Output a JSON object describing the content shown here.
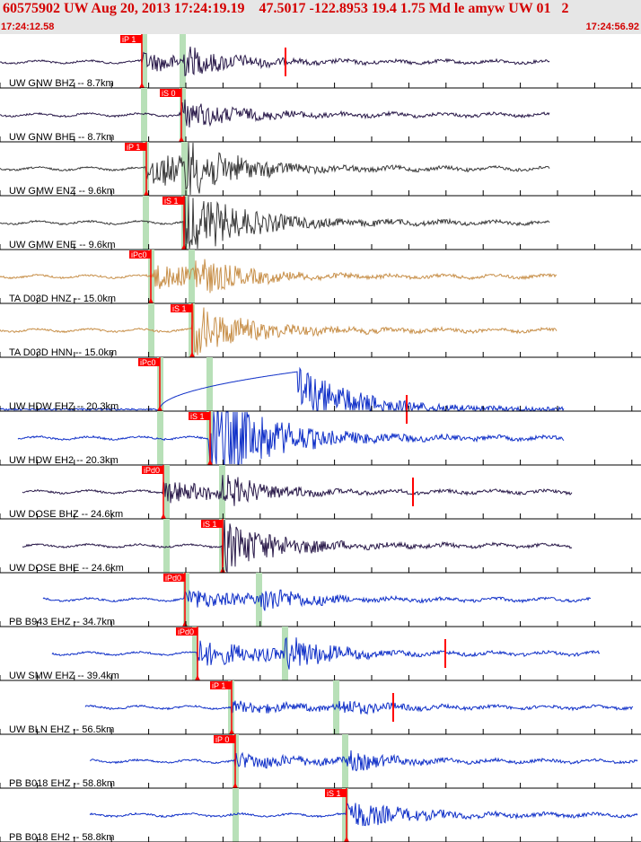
{
  "header": {
    "title": "60575902 UW Aug 20, 2013 17:24:19.19    47.5017 -122.8953 19.4 1.75 Md le amyw UW 01   2",
    "time_start": "17:24:12.58",
    "time_end": "17:24:56.92"
  },
  "colors": {
    "header_bg": "#e6e6e6",
    "pick": "#ff0000",
    "pick_window": "#b8e0b8",
    "grid": "#000000"
  },
  "traces": [
    {
      "label": "UW GNW BHZ -- 8.7km",
      "pick": "iP 1",
      "color": "#2a1a4a"
    },
    {
      "label": "UW GNW BHE -- 8.7km",
      "pick": "iS 0",
      "color": "#2a1a4a"
    },
    {
      "label": "UW GMW ENZ -- 9.6km",
      "pick": "iP 1",
      "color": "#3a3a3a"
    },
    {
      "label": "UW GMW ENE -- 9.6km",
      "pick": "iS 1",
      "color": "#3a3a3a"
    },
    {
      "label": "TA D03D HNZ -- 15.0km",
      "pick": "iPc0",
      "color": "#c8904a"
    },
    {
      "label": "TA D03D HNN -- 15.0km",
      "pick": "iS 1",
      "color": "#c8904a"
    },
    {
      "label": "UW HDW EHZ -- 20.3km",
      "pick": "iPc0",
      "color": "#1030c8"
    },
    {
      "label": "UW HDW EH2 -- 20.3km",
      "pick": "iS 1",
      "color": "#1030c8"
    },
    {
      "label": "UW DOSE BHZ -- 24.6km",
      "pick": "iPd0",
      "color": "#2a1a4a"
    },
    {
      "label": "UW DOSE BHE -- 24.6km",
      "pick": "iS 1",
      "color": "#2a1a4a"
    },
    {
      "label": "PB B943 EHZ -- 34.7km",
      "pick": "iPd0",
      "color": "#1030c8"
    },
    {
      "label": "UW SMW EHZ -- 39.4km",
      "pick": "iPd0",
      "color": "#1030c8"
    },
    {
      "label": "UW BLN EHZ -- 56.5km",
      "pick": "iP 1",
      "color": "#1030c8"
    },
    {
      "label": "PB B018 EHZ -- 58.8km",
      "pick": "iP 0",
      "color": "#1030c8"
    },
    {
      "label": "PB B018 EH2 -- 58.8km",
      "pick": "iS 1",
      "color": "#1030c8"
    }
  ]
}
